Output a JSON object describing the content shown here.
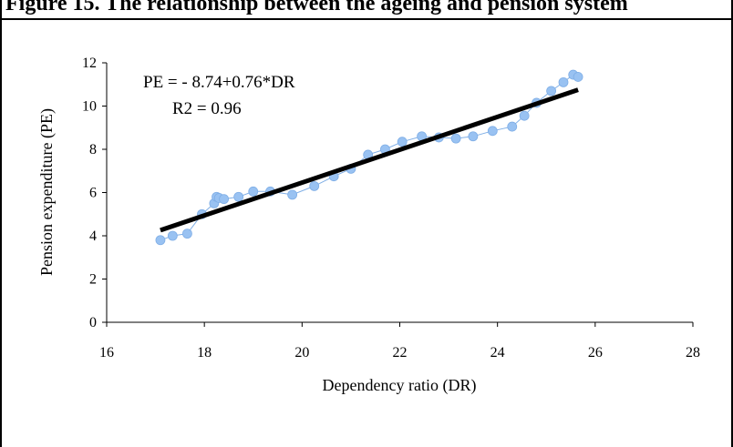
{
  "title": "Figure 15. The relationship between the ageing and pension system",
  "chart_data": {
    "type": "scatter",
    "xlabel": "Dependency ratio (DR)",
    "ylabel": "Pension expenditure (PE)",
    "xlim": [
      16,
      28
    ],
    "ylim": [
      0,
      12
    ],
    "xticks": [
      16,
      18,
      20,
      22,
      24,
      26,
      28
    ],
    "yticks": [
      0,
      2,
      4,
      6,
      8,
      10,
      12
    ],
    "grid": false,
    "annotations": [
      "PE =  - 8.74+0.76*DR",
      "R2 = 0.96"
    ],
    "series": [
      {
        "connected": true,
        "marker_color": "#99c2f2",
        "line_color": "#7faee6",
        "x": [
          17.1,
          17.35,
          17.65,
          17.95,
          18.2,
          18.25,
          18.3,
          18.4,
          18.7,
          19.0,
          19.35,
          19.8,
          20.25,
          20.65,
          21.0,
          21.35,
          21.7,
          22.05,
          22.45,
          22.8,
          23.15,
          23.5,
          23.9,
          24.3,
          24.55,
          24.8,
          25.1,
          25.35,
          25.55,
          25.65
        ],
        "y": [
          3.8,
          4.0,
          4.1,
          5.0,
          5.5,
          5.8,
          5.75,
          5.7,
          5.8,
          6.05,
          6.05,
          5.9,
          6.3,
          6.75,
          7.1,
          7.75,
          8.0,
          8.35,
          8.6,
          8.55,
          8.5,
          8.6,
          8.85,
          9.05,
          9.55,
          10.15,
          10.7,
          11.1,
          11.45,
          11.35
        ]
      }
    ],
    "trendline": {
      "intercept": -8.74,
      "slope": 0.76,
      "x_range": [
        17.1,
        25.65
      ],
      "color": "#000000"
    }
  }
}
